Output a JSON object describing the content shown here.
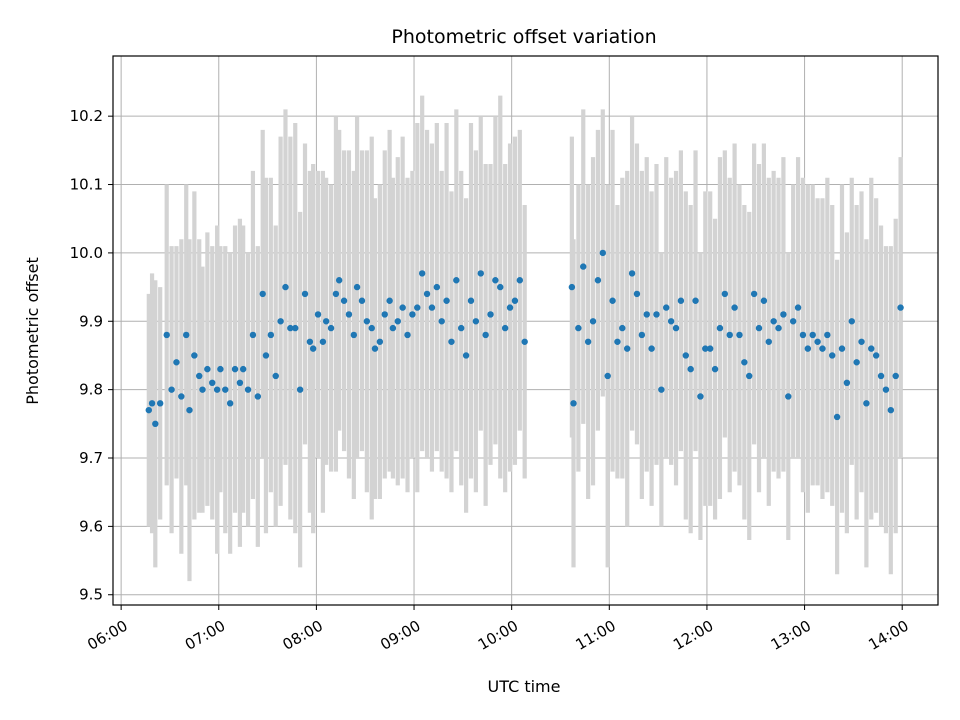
{
  "chart_data": {
    "type": "scatter",
    "title": "Photometric offset variation",
    "xlabel": "UTC time",
    "ylabel": "Photometric offset",
    "x_ticks": [
      "06:00",
      "07:00",
      "08:00",
      "09:00",
      "10:00",
      "11:00",
      "12:00",
      "13:00",
      "14:00"
    ],
    "y_ticks": [
      "9.5",
      "9.6",
      "9.7",
      "9.8",
      "9.9",
      "10.0",
      "10.1",
      "10.2"
    ],
    "xlim": [
      "05:55",
      "14:22"
    ],
    "ylim": [
      9.485,
      10.288
    ],
    "grid": true,
    "colors": {
      "points": "#1f77b4",
      "error_bars": "#d3d3d3",
      "grid": "#b0b0b0"
    },
    "series": [
      {
        "x": [
          "06:17",
          "06:19",
          "06:21",
          "06:24",
          "06:28",
          "06:31",
          "06:34",
          "06:37",
          "06:40",
          "06:42",
          "06:45",
          "06:48",
          "06:50",
          "06:53",
          "06:56",
          "06:59",
          "07:01",
          "07:04",
          "07:07",
          "07:10",
          "07:13",
          "07:15",
          "07:18",
          "07:21",
          "07:24",
          "07:27",
          "07:29",
          "07:32",
          "07:35",
          "07:38",
          "07:41",
          "07:44",
          "07:47",
          "07:50",
          "07:53",
          "07:56",
          "07:58",
          "08:01",
          "08:04",
          "08:06",
          "08:09",
          "08:12",
          "08:14",
          "08:17",
          "08:20",
          "08:23",
          "08:25",
          "08:28",
          "08:31",
          "08:34",
          "08:36",
          "08:39",
          "08:42",
          "08:45",
          "08:47",
          "08:50",
          "08:53",
          "08:56",
          "08:59",
          "09:02",
          "09:05",
          "09:08",
          "09:11",
          "09:14",
          "09:17",
          "09:20",
          "09:23",
          "09:26",
          "09:29",
          "09:32",
          "09:35",
          "09:38",
          "09:41",
          "09:44",
          "09:47",
          "09:50",
          "09:53",
          "09:56",
          "09:59",
          "10:02",
          "10:05",
          "10:08",
          "10:37",
          "10:38",
          "10:41",
          "10:44",
          "10:47",
          "10:50",
          "10:53",
          "10:56",
          "10:59",
          "11:02",
          "11:05",
          "11:08",
          "11:11",
          "11:14",
          "11:17",
          "11:20",
          "11:23",
          "11:26",
          "11:29",
          "11:32",
          "11:35",
          "11:38",
          "11:41",
          "11:44",
          "11:47",
          "11:50",
          "11:53",
          "11:56",
          "11:59",
          "12:02",
          "12:05",
          "12:08",
          "12:11",
          "12:14",
          "12:17",
          "12:20",
          "12:23",
          "12:26",
          "12:29",
          "12:32",
          "12:35",
          "12:38",
          "12:41",
          "12:44",
          "12:47",
          "12:50",
          "12:53",
          "12:56",
          "12:59",
          "13:02",
          "13:05",
          "13:08",
          "13:11",
          "13:14",
          "13:17",
          "13:20",
          "13:23",
          "13:26",
          "13:29",
          "13:32",
          "13:35",
          "13:38",
          "13:41",
          "13:44",
          "13:47",
          "13:50",
          "13:53",
          "13:56",
          "13:59"
        ],
        "y": [
          9.77,
          9.78,
          9.75,
          9.78,
          9.88,
          9.8,
          9.84,
          9.79,
          9.88,
          9.77,
          9.85,
          9.82,
          9.8,
          9.83,
          9.81,
          9.8,
          9.83,
          9.8,
          9.78,
          9.83,
          9.81,
          9.83,
          9.8,
          9.88,
          9.79,
          9.94,
          9.85,
          9.88,
          9.82,
          9.9,
          9.95,
          9.89,
          9.89,
          9.8,
          9.94,
          9.87,
          9.86,
          9.91,
          9.87,
          9.9,
          9.89,
          9.94,
          9.96,
          9.93,
          9.91,
          9.88,
          9.95,
          9.93,
          9.9,
          9.89,
          9.86,
          9.87,
          9.91,
          9.93,
          9.89,
          9.9,
          9.92,
          9.88,
          9.91,
          9.92,
          9.97,
          9.94,
          9.92,
          9.95,
          9.9,
          9.93,
          9.87,
          9.96,
          9.89,
          9.85,
          9.93,
          9.9,
          9.97,
          9.88,
          9.91,
          9.96,
          9.95,
          9.89,
          9.92,
          9.93,
          9.96,
          9.87,
          9.95,
          9.78,
          9.89,
          9.98,
          9.87,
          9.9,
          9.96,
          10.0,
          9.82,
          9.93,
          9.87,
          9.89,
          9.86,
          9.97,
          9.94,
          9.88,
          9.91,
          9.86,
          9.91,
          9.8,
          9.92,
          9.9,
          9.89,
          9.93,
          9.85,
          9.83,
          9.93,
          9.79,
          9.86,
          9.86,
          9.83,
          9.89,
          9.94,
          9.88,
          9.92,
          9.88,
          9.84,
          9.82,
          9.94,
          9.89,
          9.93,
          9.87,
          9.9,
          9.89,
          9.91,
          9.79,
          9.9,
          9.92,
          9.88,
          9.86,
          9.88,
          9.87,
          9.86,
          9.88,
          9.85,
          9.76,
          9.86,
          9.81,
          9.9,
          9.84,
          9.87,
          9.78,
          9.86,
          9.85,
          9.82,
          9.8,
          9.77,
          9.82,
          9.92
        ],
        "err": [
          0.17,
          0.19,
          0.21,
          0.17,
          0.22,
          0.21,
          0.17,
          0.23,
          0.22,
          0.25,
          0.24,
          0.2,
          0.18,
          0.2,
          0.2,
          0.24,
          0.18,
          0.21,
          0.22,
          0.21,
          0.24,
          0.21,
          0.2,
          0.24,
          0.22,
          0.24,
          0.26,
          0.23,
          0.22,
          0.27,
          0.26,
          0.28,
          0.3,
          0.26,
          0.22,
          0.25,
          0.27,
          0.21,
          0.25,
          0.21,
          0.21,
          0.26,
          0.22,
          0.22,
          0.24,
          0.24,
          0.25,
          0.22,
          0.25,
          0.28,
          0.22,
          0.23,
          0.24,
          0.25,
          0.22,
          0.24,
          0.25,
          0.23,
          0.21,
          0.27,
          0.26,
          0.24,
          0.24,
          0.24,
          0.22,
          0.26,
          0.22,
          0.25,
          0.23,
          0.23,
          0.26,
          0.25,
          0.23,
          0.25,
          0.22,
          0.24,
          0.28,
          0.24,
          0.24,
          0.24,
          0.22,
          0.2,
          0.22,
          0.24,
          0.21,
          0.23,
          0.23,
          0.24,
          0.22,
          0.21,
          0.28,
          0.25,
          0.2,
          0.22,
          0.26,
          0.23,
          0.22,
          0.24,
          0.23,
          0.23,
          0.22,
          0.2,
          0.22,
          0.21,
          0.23,
          0.22,
          0.24,
          0.24,
          0.22,
          0.21,
          0.23,
          0.23,
          0.22,
          0.25,
          0.21,
          0.23,
          0.24,
          0.22,
          0.23,
          0.24,
          0.22,
          0.24,
          0.23,
          0.24,
          0.22,
          0.22,
          0.23,
          0.21,
          0.2,
          0.22,
          0.23,
          0.24,
          0.22,
          0.21,
          0.22,
          0.23,
          0.22,
          0.23,
          0.24,
          0.22,
          0.21,
          0.23,
          0.22,
          0.24,
          0.25,
          0.23,
          0.22,
          0.21,
          0.24,
          0.23,
          0.22
        ]
      }
    ]
  }
}
